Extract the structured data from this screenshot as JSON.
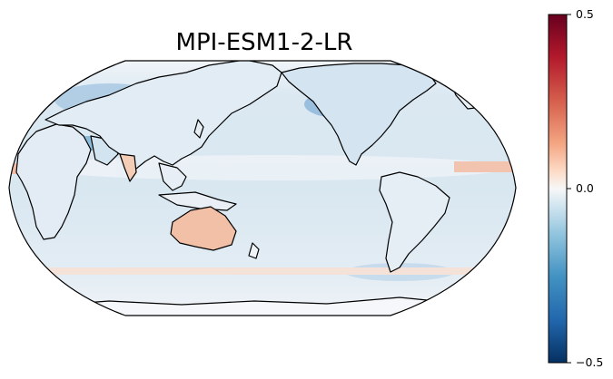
{
  "title": "MPI-ESM1-2-LR",
  "colorbar": {
    "colormap": "RdBu_r",
    "range": [
      -0.5,
      0.5
    ],
    "ticks": [
      "0.5",
      "0.0",
      "−0.5"
    ],
    "colors": {
      "max": "#67001f",
      "high": "#d6604d",
      "mid": "#f7f7f7",
      "low": "#4393c3",
      "min": "#053061"
    }
  },
  "map": {
    "projection": "Robinson",
    "central_longitude": 180,
    "ocean_tint": "#dfeaf3",
    "coastline_color": "#000000"
  }
}
